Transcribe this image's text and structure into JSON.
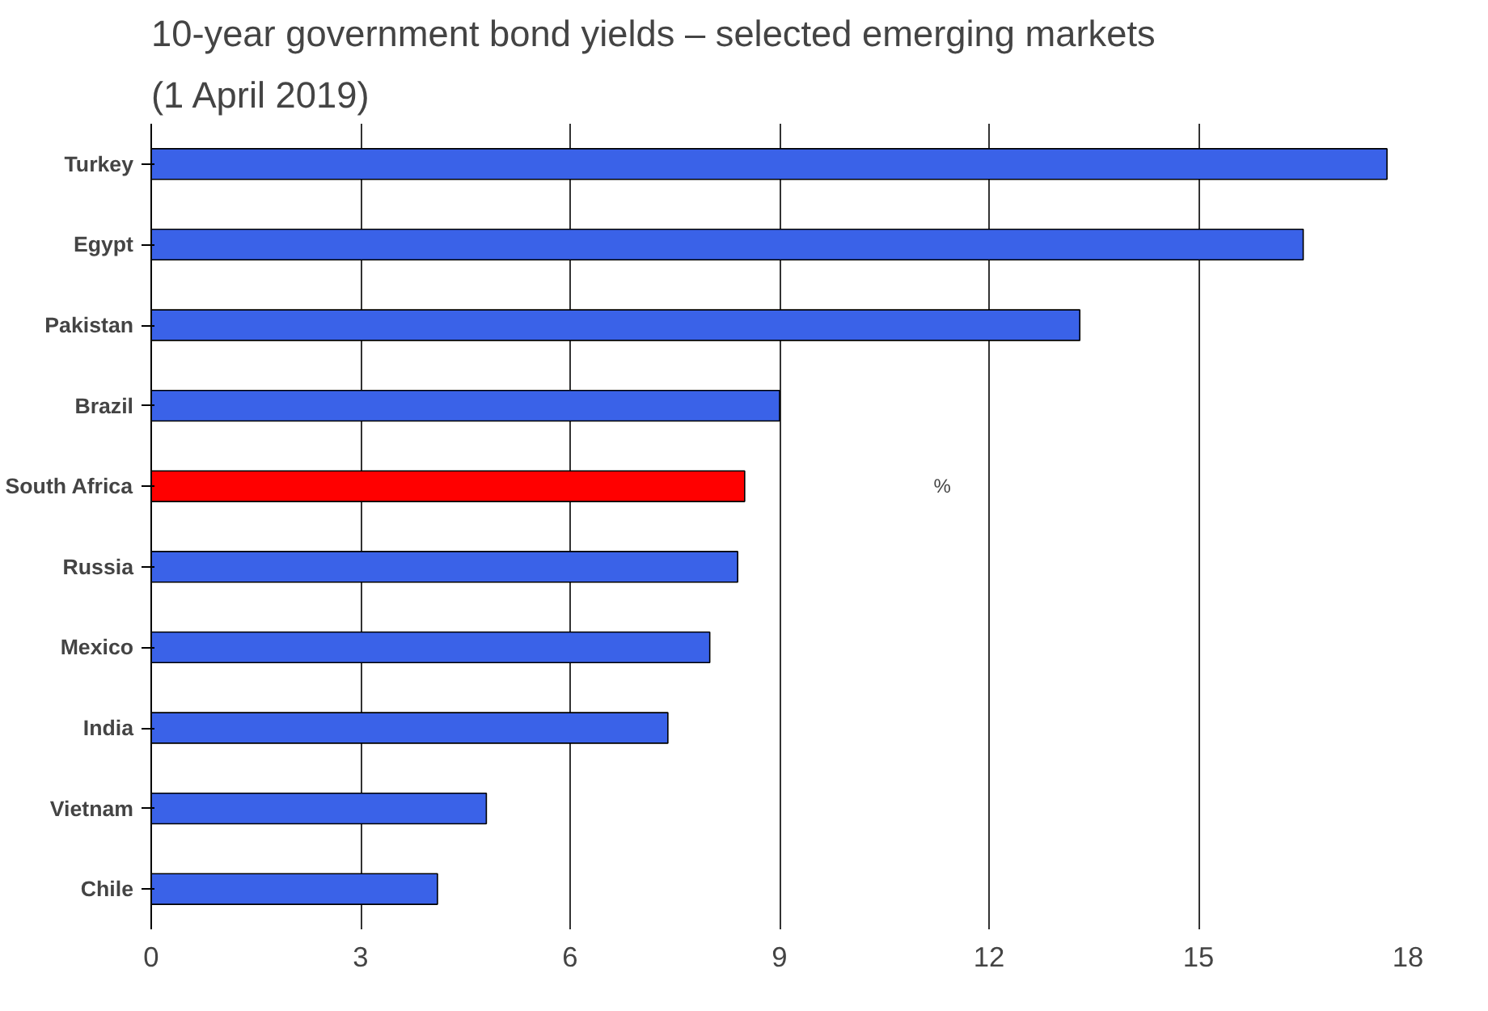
{
  "chart_data": {
    "type": "bar",
    "orientation": "horizontal",
    "title": "10-year government bond yields – selected emerging markets",
    "subtitle": "(1 April 2019)",
    "categories": [
      "Turkey",
      "Egypt",
      "Pakistan",
      "Brazil",
      "South Africa",
      "Russia",
      "Mexico",
      "India",
      "Vietnam",
      "Chile"
    ],
    "values": [
      17.7,
      16.5,
      13.3,
      9.0,
      8.5,
      8.4,
      8.0,
      7.4,
      4.8,
      4.1
    ],
    "colors": [
      "#3a62e8",
      "#3a62e8",
      "#3a62e8",
      "#3a62e8",
      "#ff0000",
      "#3a62e8",
      "#3a62e8",
      "#3a62e8",
      "#3a62e8",
      "#3a62e8"
    ],
    "xlim": [
      0,
      18
    ],
    "xticks": [
      0,
      3,
      6,
      9,
      12,
      15,
      18
    ],
    "grid": "x",
    "annotations": [
      "%"
    ]
  }
}
